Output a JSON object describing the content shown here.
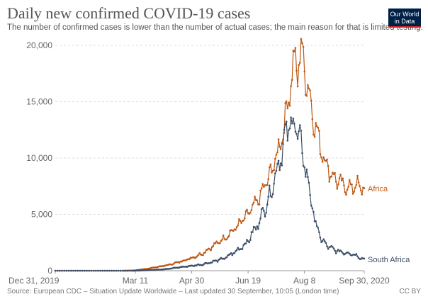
{
  "header": {
    "title": "Daily new confirmed COVID-19 cases",
    "subtitle": "The number of confirmed cases is lower than the number of actual cases; the main reason for that is limited testing.",
    "logo_line1": "Our World",
    "logo_line2": "in Data"
  },
  "footer": {
    "source": "Source: European CDC – Situation Update Worldwide – Last updated 30 September, 10:05 (London time)",
    "license": "CC BY"
  },
  "chart_data": {
    "type": "line",
    "title": "Daily new confirmed COVID-19 cases",
    "xlabel": "",
    "ylabel": "",
    "ylim": [
      0,
      20000
    ],
    "xlim": [
      0,
      274
    ],
    "x_unit": "days since Dec 31, 2019",
    "y_ticks": [
      0,
      5000,
      10000,
      15000,
      20000
    ],
    "y_tick_labels": [
      "0",
      "5,000",
      "10,000",
      "15,000",
      "20,000"
    ],
    "x_ticks": [
      0,
      71,
      121,
      171,
      221,
      274
    ],
    "x_tick_labels": [
      "Dec 31, 2019",
      "Mar 11",
      "Apr 30",
      "Jun 19",
      "Aug 8",
      "Sep 30, 2020"
    ],
    "grid": "horizontal",
    "series": [
      {
        "name": "Africa",
        "color": "#be5915",
        "anchors": [
          [
            0,
            0
          ],
          [
            60,
            0
          ],
          [
            70,
            20
          ],
          [
            80,
            150
          ],
          [
            90,
            320
          ],
          [
            100,
            500
          ],
          [
            110,
            780
          ],
          [
            120,
            1100
          ],
          [
            130,
            1500
          ],
          [
            140,
            2200
          ],
          [
            150,
            2900
          ],
          [
            160,
            3800
          ],
          [
            170,
            4900
          ],
          [
            180,
            6300
          ],
          [
            190,
            8400
          ],
          [
            196,
            10100
          ],
          [
            200,
            11500
          ],
          [
            204,
            13500
          ],
          [
            208,
            16200
          ],
          [
            212,
            18800
          ],
          [
            215,
            17600
          ],
          [
            218,
            20000
          ],
          [
            220,
            18500
          ],
          [
            224,
            16500
          ],
          [
            228,
            14100
          ],
          [
            232,
            12300
          ],
          [
            236,
            10800
          ],
          [
            240,
            9600
          ],
          [
            244,
            8700
          ],
          [
            250,
            8000
          ],
          [
            256,
            7500
          ],
          [
            262,
            7400
          ],
          [
            268,
            7600
          ],
          [
            272,
            7300
          ],
          [
            274,
            7300
          ]
        ],
        "noise": 0.12,
        "end_label": "Africa"
      },
      {
        "name": "South Africa",
        "color": "#3c4e66",
        "anchors": [
          [
            0,
            0
          ],
          [
            68,
            0
          ],
          [
            72,
            10
          ],
          [
            80,
            40
          ],
          [
            90,
            80
          ],
          [
            100,
            160
          ],
          [
            110,
            300
          ],
          [
            120,
            420
          ],
          [
            130,
            550
          ],
          [
            140,
            800
          ],
          [
            150,
            1100
          ],
          [
            160,
            1700
          ],
          [
            170,
            2500
          ],
          [
            180,
            4200
          ],
          [
            190,
            6600
          ],
          [
            196,
            8800
          ],
          [
            200,
            10300
          ],
          [
            204,
            11800
          ],
          [
            208,
            13000
          ],
          [
            211,
            13300
          ],
          [
            214,
            12600
          ],
          [
            217,
            11400
          ],
          [
            220,
            10200
          ],
          [
            224,
            8000
          ],
          [
            228,
            5600
          ],
          [
            232,
            3800
          ],
          [
            236,
            2800
          ],
          [
            240,
            2300
          ],
          [
            246,
            1900
          ],
          [
            252,
            1700
          ],
          [
            258,
            1600
          ],
          [
            264,
            1500
          ],
          [
            270,
            1200
          ],
          [
            274,
            1000
          ]
        ],
        "noise": 0.15,
        "end_label": "South Africa"
      }
    ]
  }
}
